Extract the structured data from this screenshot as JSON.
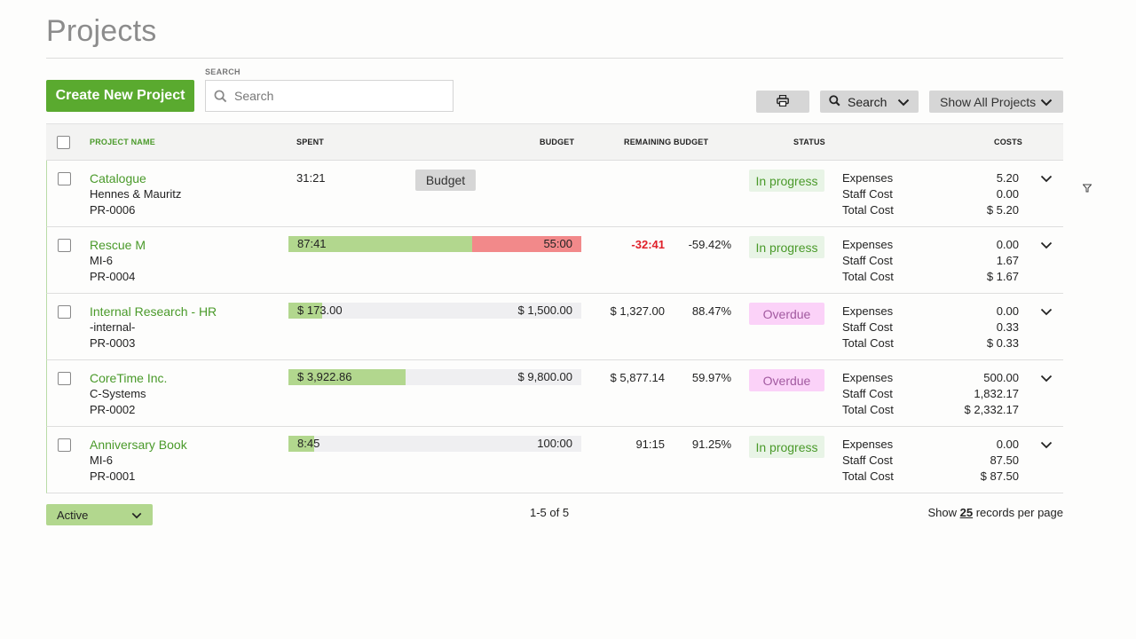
{
  "page": {
    "title": "Projects"
  },
  "toolbar": {
    "create_label": "Create New Project",
    "search_label": "SEARCH",
    "search_placeholder": "Search",
    "search_value": "",
    "search_dropdown_label": "Search",
    "show_dropdown_label": "Show All Projects"
  },
  "table": {
    "headers": {
      "project_name": "PROJECT NAME",
      "spent": "SPENT",
      "budget": "BUDGET",
      "remaining": "REMAINING BUDGET",
      "status": "STATUS",
      "costs": "COSTS"
    },
    "cost_labels": {
      "expenses": "Expenses",
      "staff": "Staff Cost",
      "total": "Total Cost"
    },
    "rows": [
      {
        "name": "Catalogue",
        "client": "Hennes & Mauritz",
        "code": "PR-0006",
        "spent": "31:21",
        "budget": "",
        "budget_button": "Budget",
        "remaining": "",
        "percent": "",
        "status": "In progress",
        "expenses": "5.20",
        "staff": "0.00",
        "total": "$ 5.20"
      },
      {
        "name": "Rescue M",
        "client": "MI-6",
        "code": "PR-0004",
        "spent": "87:41",
        "budget": "55:00",
        "fill": 0.627,
        "over": 0.373,
        "remaining": "-32:41",
        "percent": "-59.42%",
        "status": "In progress",
        "expenses": "0.00",
        "staff": "1.67",
        "total": "$ 1.67"
      },
      {
        "name": "Internal Research - HR",
        "client": "-internal-",
        "code": "PR-0003",
        "spent": "$ 173.00",
        "budget": "$ 1,500.00",
        "fill": 0.115,
        "remaining": "$ 1,327.00",
        "percent": "88.47%",
        "status": "Overdue",
        "expenses": "0.00",
        "staff": "0.33",
        "total": "$ 0.33"
      },
      {
        "name": "CoreTime Inc.",
        "client": "C-Systems",
        "code": "PR-0002",
        "spent": "$ 3,922.86",
        "budget": "$ 9,800.00",
        "fill": 0.4003,
        "remaining": "$ 5,877.14",
        "percent": "59.97%",
        "status": "Overdue",
        "expenses": "500.00",
        "staff": "1,832.17",
        "total": "$ 2,332.17"
      },
      {
        "name": "Anniversary Book",
        "client": "MI-6",
        "code": "PR-0001",
        "spent": "8:45",
        "budget": "100:00",
        "fill": 0.0875,
        "remaining": "91:15",
        "percent": "91.25%",
        "status": "In progress",
        "expenses": "0.00",
        "staff": "87.50",
        "total": "$ 87.50"
      }
    ]
  },
  "footer": {
    "filter_label": "Active",
    "pager": "1-5 of 5",
    "per_page_prefix": "Show",
    "per_page_count": "25",
    "per_page_suffix": "records per page"
  },
  "colors": {
    "accent": "#5aaa2f",
    "bar_fill": "#b2d78e",
    "bar_over": "#f2898a",
    "status_progress_bg": "#e8f4e6",
    "status_overdue_bg": "#fbd2f8",
    "negative": "#e0202a"
  },
  "icons": [
    "search-icon",
    "print-icon",
    "chevron-down-icon",
    "filter-icon"
  ]
}
